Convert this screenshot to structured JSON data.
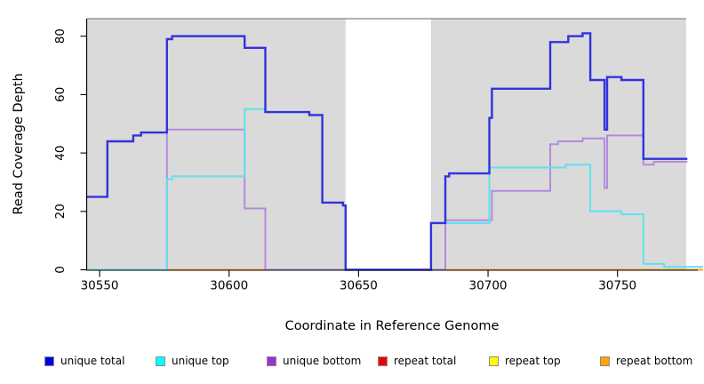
{
  "chart_data": {
    "type": "step-line",
    "xlabel": "Coordinate in Reference Genome",
    "ylabel": "Read Coverage Depth",
    "xlim": [
      30545,
      30781
    ],
    "ylim": [
      0,
      86
    ],
    "xticks": [
      30550,
      30600,
      30650,
      30700,
      30750
    ],
    "yticks": [
      0,
      20,
      40,
      60,
      80
    ],
    "grid": false,
    "legend_position": "bottom",
    "shaded_regions": [
      {
        "x0": 30545,
        "x1": 30645,
        "color": "#DADADA"
      },
      {
        "x0": 30678,
        "x1": 30776.5,
        "color": "#DADADA"
      }
    ],
    "draw_order": [
      3,
      4,
      5,
      2,
      1,
      0
    ],
    "series": [
      {
        "name": "unique total",
        "slug": "unique-total",
        "color": "#3232DC",
        "legend_color": "#0000E6",
        "x_end": 30777,
        "points": [
          [
            30545,
            25
          ],
          [
            30553,
            44
          ],
          [
            30563,
            46
          ],
          [
            30566,
            47
          ],
          [
            30576,
            79
          ],
          [
            30578,
            80
          ],
          [
            30606,
            76
          ],
          [
            30614,
            54
          ],
          [
            30631,
            53
          ],
          [
            30636,
            23
          ],
          [
            30644,
            22
          ],
          [
            30645,
            0
          ],
          [
            30678,
            16
          ],
          [
            30683.5,
            32
          ],
          [
            30685,
            33
          ],
          [
            30700.5,
            52
          ],
          [
            30701.5,
            62
          ],
          [
            30724,
            78
          ],
          [
            30731,
            80
          ],
          [
            30736.5,
            81
          ],
          [
            30739.5,
            65
          ],
          [
            30745,
            48
          ],
          [
            30746,
            66
          ],
          [
            30751.5,
            65
          ],
          [
            30760,
            38
          ]
        ]
      },
      {
        "name": "unique top",
        "slug": "unique-top",
        "color": "#5FE2EE",
        "legend_color": "#00FFFF",
        "x_end": 30783,
        "points": [
          [
            30545,
            0
          ],
          [
            30576,
            31
          ],
          [
            30578,
            32
          ],
          [
            30606,
            55
          ],
          [
            30614,
            54
          ],
          [
            30631,
            53
          ],
          [
            30636,
            23
          ],
          [
            30644,
            22
          ],
          [
            30645,
            0
          ],
          [
            30678,
            16
          ],
          [
            30700.5,
            35
          ],
          [
            30730,
            36
          ],
          [
            30739.5,
            20
          ],
          [
            30751.5,
            19
          ],
          [
            30760,
            2
          ],
          [
            30768,
            1
          ]
        ]
      },
      {
        "name": "unique bottom",
        "slug": "unique-bottom",
        "color": "#B38BDC",
        "legend_color": "#9B30D6",
        "x_end": 30777,
        "points": [
          [
            30545,
            0
          ],
          [
            30576,
            48
          ],
          [
            30606,
            21
          ],
          [
            30614,
            0
          ],
          [
            30683.5,
            17
          ],
          [
            30701.5,
            27
          ],
          [
            30724,
            43
          ],
          [
            30727,
            44
          ],
          [
            30736.5,
            45
          ],
          [
            30745,
            28
          ],
          [
            30746,
            46
          ],
          [
            30760,
            36
          ],
          [
            30764,
            37
          ]
        ]
      },
      {
        "name": "repeat total",
        "slug": "repeat-total",
        "color": "#E04848",
        "legend_color": "#EE0000",
        "x_end": 30783,
        "points": [
          [
            30545,
            0
          ]
        ]
      },
      {
        "name": "repeat top",
        "slug": "repeat-top",
        "color": "#FFEB3B",
        "legend_color": "#FFFF00",
        "x_end": 30783,
        "points": [
          [
            30545,
            0
          ]
        ]
      },
      {
        "name": "repeat bottom",
        "slug": "repeat-bottom",
        "color": "#FFA41E",
        "legend_color": "#FFA500",
        "x_end": 30783,
        "points": [
          [
            30545,
            0
          ]
        ]
      }
    ]
  }
}
